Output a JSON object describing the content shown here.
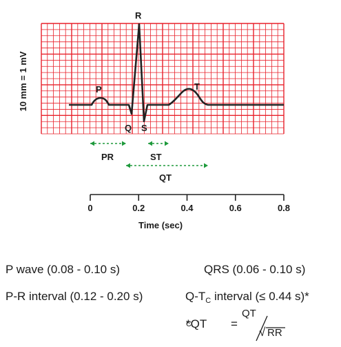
{
  "diagram": {
    "calibration_label": "10 mm = 1 mV",
    "waves": {
      "p": "P",
      "q": "Q",
      "r": "R",
      "s": "S",
      "t": "T"
    },
    "intervals": {
      "pr": "PR",
      "st": "ST",
      "qt": "QT"
    },
    "axis": {
      "title": "Time (sec)",
      "ticks": [
        "0",
        "0.2",
        "0.4",
        "0.6",
        "0.8"
      ],
      "range": [
        0,
        0.8
      ]
    },
    "colors": {
      "grid": "#e8202a",
      "trace": "#222222",
      "interval_markers": "#1e9a3c"
    }
  },
  "info": {
    "p_wave": "P wave (0.08 - 0.10 s)",
    "qrs": "QRS (0.06 - 0.10 s)",
    "pr_interval": "P-R interval (0.12 - 0.20 s)",
    "qtc_prefix": "Q-T",
    "qtc_sub": "C",
    "qtc_suffix": " interval (≤ 0.44 s)*",
    "formula_lhs": "*QT",
    "formula_lhs_sub": "C",
    "formula_eq": "=",
    "formula_num": "QT",
    "formula_den": "RR",
    "formula_root": "√"
  }
}
